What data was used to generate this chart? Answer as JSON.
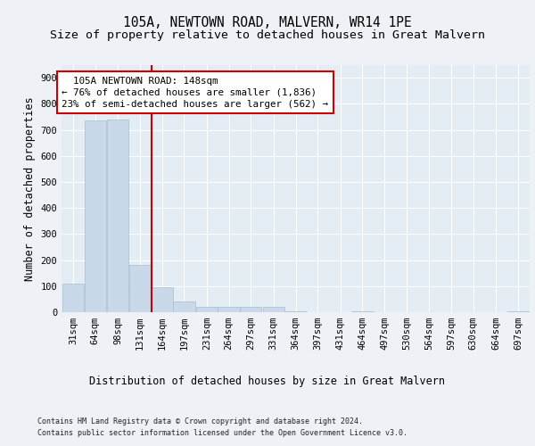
{
  "title": "105A, NEWTOWN ROAD, MALVERN, WR14 1PE",
  "subtitle": "Size of property relative to detached houses in Great Malvern",
  "xlabel": "Distribution of detached houses by size in Great Malvern",
  "ylabel": "Number of detached properties",
  "footer_line1": "Contains HM Land Registry data © Crown copyright and database right 2024.",
  "footer_line2": "Contains public sector information licensed under the Open Government Licence v3.0.",
  "annotation_line1": "  105A NEWTOWN ROAD: 148sqm",
  "annotation_line2": "← 76% of detached houses are smaller (1,836)",
  "annotation_line3": "23% of semi-detached houses are larger (562) →",
  "bar_color": "#c9d9ea",
  "bar_edge_color": "#a8becc",
  "vline_color": "#cc0000",
  "vline_x": 148,
  "categories": [
    31,
    64,
    98,
    131,
    164,
    197,
    231,
    264,
    297,
    331,
    364,
    397,
    431,
    464,
    497,
    530,
    564,
    597,
    630,
    664,
    697
  ],
  "values": [
    110,
    735,
    740,
    180,
    95,
    40,
    22,
    20,
    20,
    20,
    5,
    0,
    0,
    5,
    0,
    0,
    0,
    0,
    0,
    0,
    5
  ],
  "ylim": [
    0,
    950
  ],
  "yticks": [
    0,
    100,
    200,
    300,
    400,
    500,
    600,
    700,
    800,
    900
  ],
  "bin_width": 33,
  "background_color": "#eef2f7",
  "plot_background": "#e4ecf4",
  "grid_color": "#ffffff",
  "title_fontsize": 10.5,
  "subtitle_fontsize": 9.5,
  "axis_label_fontsize": 8.5,
  "tick_fontsize": 7.5,
  "footer_fontsize": 6.0
}
